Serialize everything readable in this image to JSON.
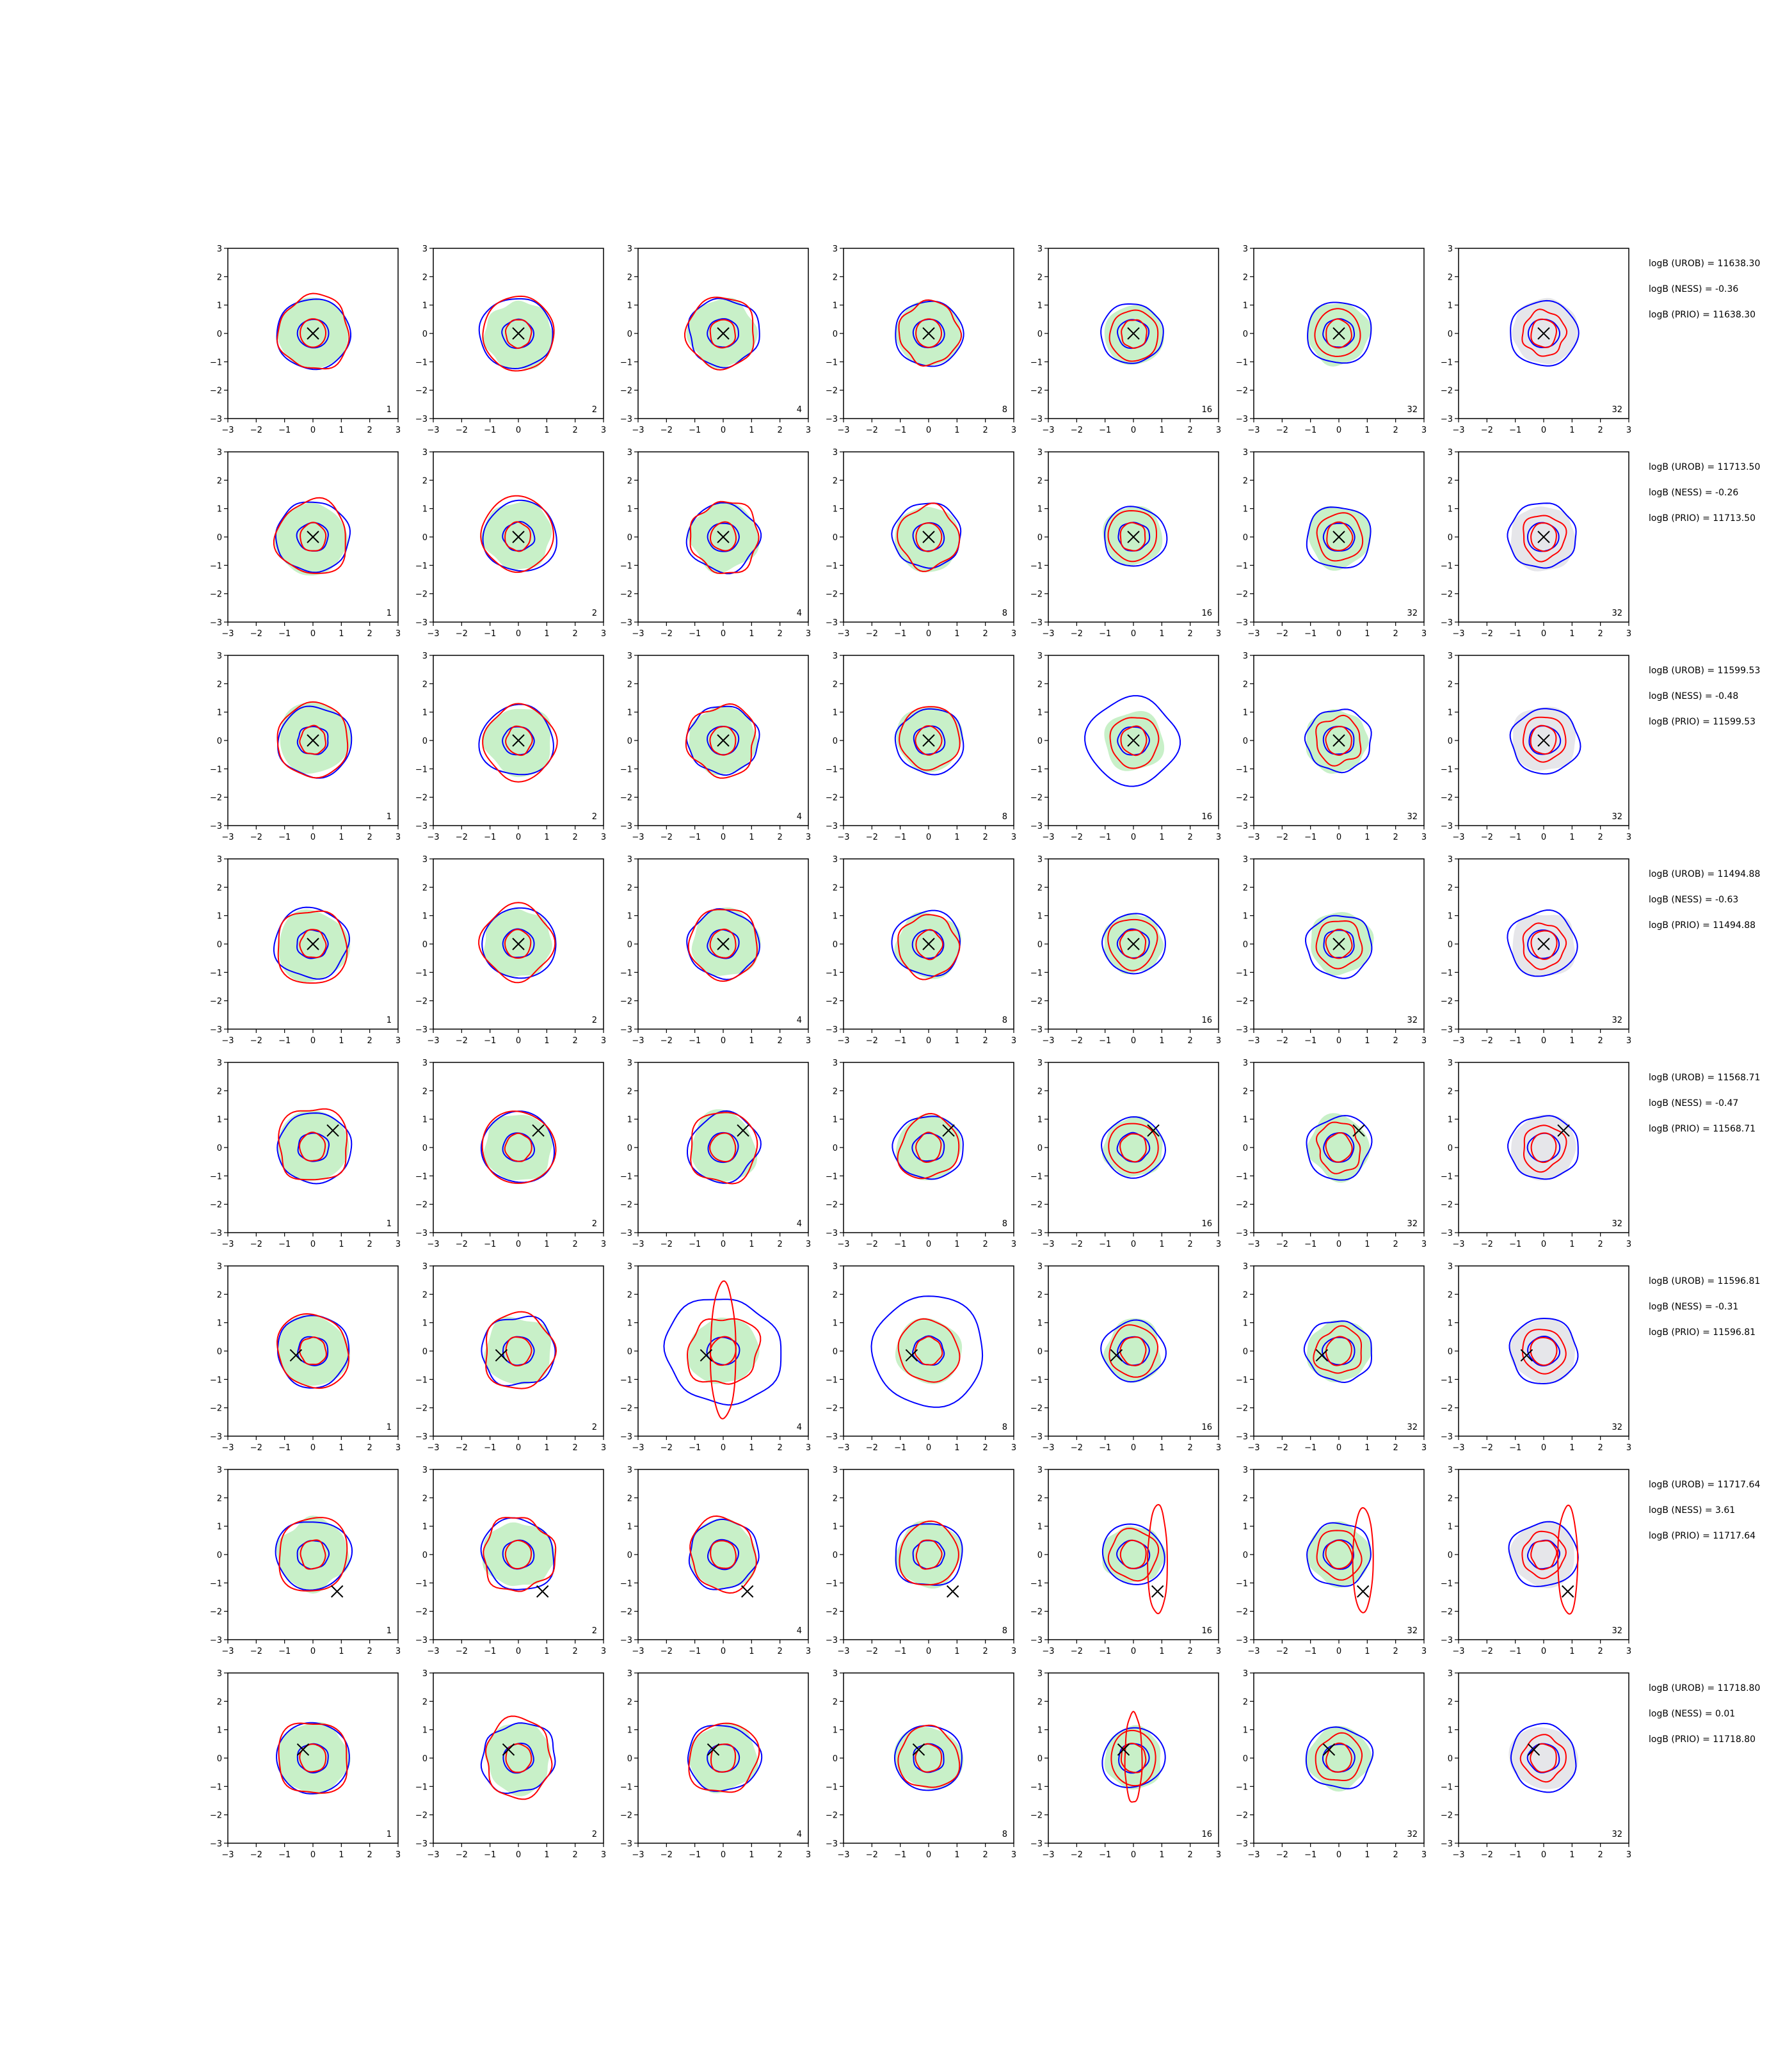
{
  "colors": {
    "blue_contour": "#0000ff",
    "red_contour": "#ff0000",
    "green_fill": "#c8f0c8",
    "gray_fill": "#e6e6ea",
    "marker": "#000000",
    "axis": "#000000"
  },
  "chart_data": {
    "type": "contour-grid",
    "rows": 8,
    "cols": 7,
    "xlim": [
      -3,
      3
    ],
    "ylim": [
      -3,
      3
    ],
    "xticks": [
      "−3",
      "−2",
      "−1",
      "0",
      "1",
      "2",
      "3"
    ],
    "yticks": [
      "3",
      "2",
      "1",
      "0",
      "−1",
      "−2",
      "−3"
    ],
    "column_labels": [
      "1",
      "2",
      "4",
      "8",
      "16",
      "32",
      "32"
    ],
    "rows_data": [
      {
        "marker": [
          0.0,
          0.0
        ],
        "stats": [
          "logB (UROB) = 11638.30",
          "logB (NESS) = -0.36",
          "logB (PRIO) = 11638.30"
        ]
      },
      {
        "marker": [
          0.0,
          0.0
        ],
        "stats": [
          "logB (UROB) = 11713.50",
          "logB (NESS) = -0.26",
          "logB (PRIO) = 11713.50"
        ]
      },
      {
        "marker": [
          0.0,
          0.0
        ],
        "stats": [
          "logB (UROB) = 11599.53",
          "logB (NESS) = -0.48",
          "logB (PRIO) = 11599.53"
        ]
      },
      {
        "marker": [
          0.0,
          0.0
        ],
        "stats": [
          "logB (UROB) = 11494.88",
          "logB (NESS) = -0.63",
          "logB (PRIO) = 11494.88"
        ]
      },
      {
        "marker": [
          0.7,
          0.6
        ],
        "stats": [
          "logB (UROB) = 11568.71",
          "logB (NESS) = -0.47",
          "logB (PRIO) = 11568.71"
        ]
      },
      {
        "marker": [
          -0.6,
          -0.15
        ],
        "stats": [
          "logB (UROB) = 11596.81",
          "logB (NESS) = -0.31",
          "logB (PRIO) = 11596.81"
        ]
      },
      {
        "marker": [
          0.85,
          -1.3
        ],
        "stats": [
          "logB (UROB) = 11717.64",
          "logB (NESS) = 3.61",
          "logB (PRIO) = 11717.64"
        ]
      },
      {
        "marker": [
          -0.35,
          0.3
        ],
        "stats": [
          "logB (UROB) = 11718.80",
          "logB (NESS) = 0.01",
          "logB (PRIO) = 11718.80"
        ]
      }
    ],
    "series": [
      "green filled density",
      "blue contour",
      "red contour",
      "black cross marker",
      "gray filled density"
    ]
  }
}
